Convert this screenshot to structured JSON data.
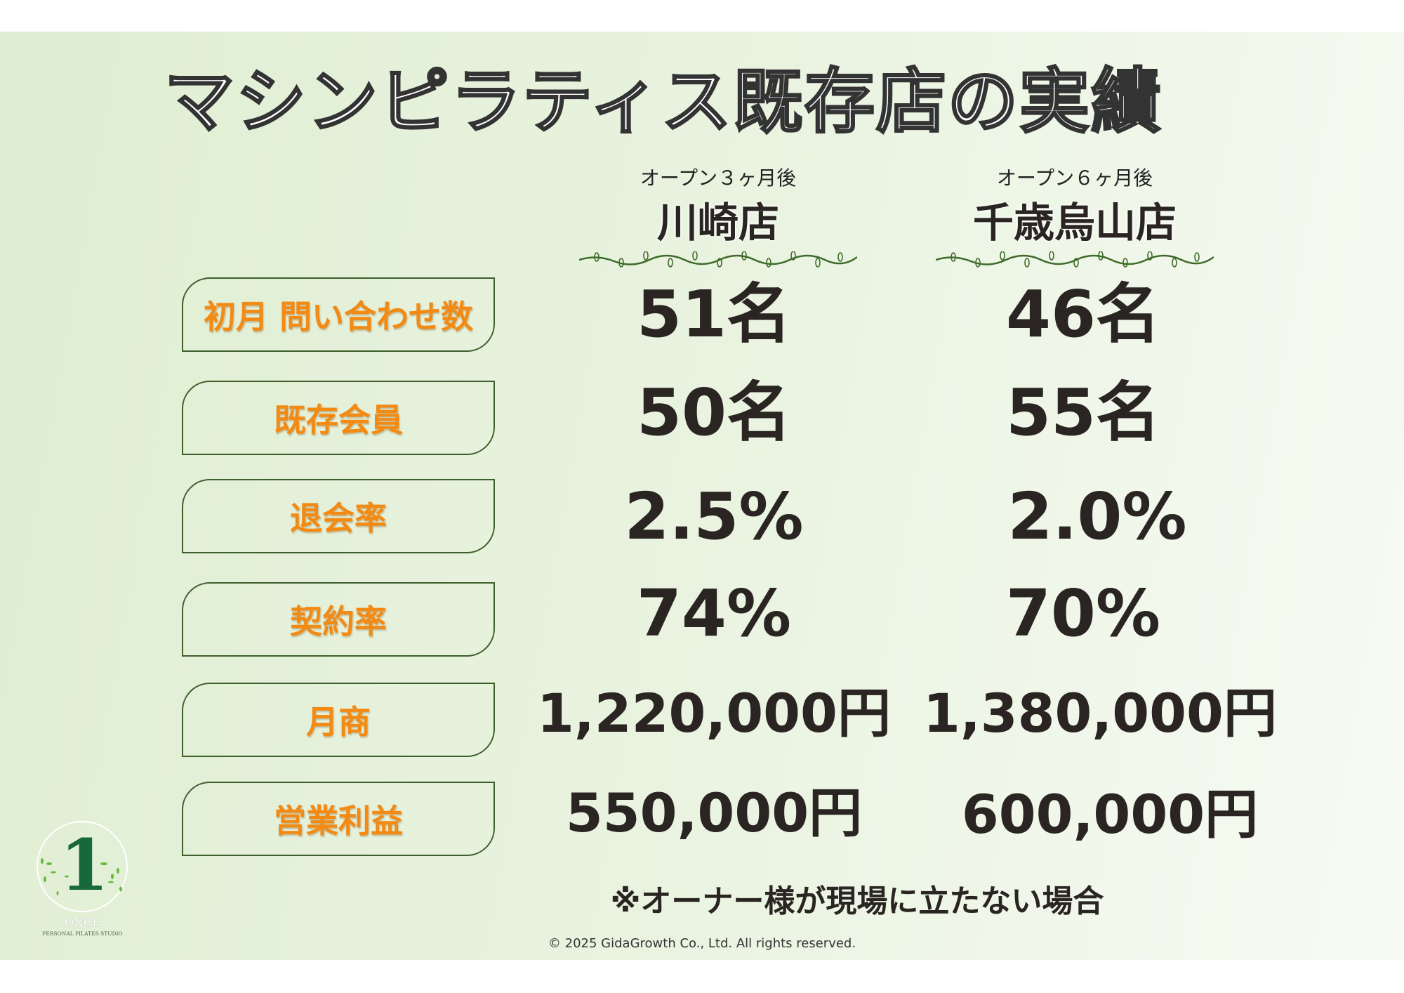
{
  "title": "マシンピラティス既存店の実績",
  "columns": [
    {
      "subtitle": "オープン３ヶ月後",
      "store": "川崎店"
    },
    {
      "subtitle": "オープン６ヶ月後",
      "store": "千歳烏山店"
    }
  ],
  "rows": [
    {
      "label": "初月 問い合わせ数",
      "values": [
        "51名",
        "46名"
      ]
    },
    {
      "label": "既存会員",
      "values": [
        "50名",
        "55名"
      ]
    },
    {
      "label": "退会率",
      "values": [
        "2.5%",
        "2.0%"
      ]
    },
    {
      "label": "契約率",
      "values": [
        "74%",
        "70%"
      ]
    },
    {
      "label": "月商",
      "values": [
        "1,220,000円",
        "1,380,000円"
      ]
    },
    {
      "label": "営業利益",
      "values": [
        "550,000円",
        "600,000円"
      ]
    }
  ],
  "note": "※オーナー様が現場に立たない場合",
  "copyright": "© 2025 GidaGrowth Co., Ltd. All rights reserved.",
  "logo": {
    "numeral": "1",
    "name": "ONCE",
    "tagline": "PERSONAL PILATES STUDIO"
  },
  "colors": {
    "label_text": "#f28a14",
    "border": "#3e5f2c",
    "value_text": "#2a2522"
  }
}
